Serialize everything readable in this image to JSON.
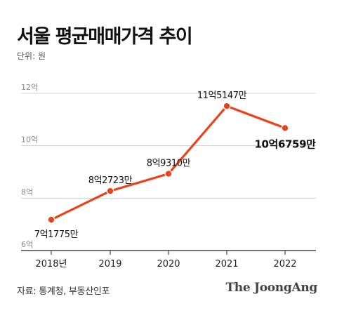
{
  "header": {
    "title": "서울 평균매매가격 추이",
    "unit": "단위: 원"
  },
  "footer": {
    "source": "자료: 통계청, 부동산인포",
    "logo": "The JoongAng"
  },
  "colors": {
    "line": "#e8431c",
    "grid": "#c8c8c8",
    "axis": "#222222",
    "label": "#111111",
    "tick": "#888888"
  },
  "chart_data": {
    "type": "line",
    "title": "서울 평균매매가격 추이",
    "ylabel": "",
    "xlabel": "",
    "unit": "단위: 원",
    "categories": [
      "2018년",
      "2019",
      "2020",
      "2021",
      "2022"
    ],
    "values": [
      7.1775,
      8.2723,
      8.931,
      11.5147,
      10.6759
    ],
    "data_labels": [
      "7억1775만",
      "8억2723만",
      "8억9310만",
      "11억5147만",
      "10억6759만"
    ],
    "highlight_index": 4,
    "ylim": [
      6,
      12
    ],
    "yticks": [
      6,
      8,
      10,
      12
    ],
    "ytick_labels": [
      "6억",
      "8억",
      "10억",
      "12억"
    ],
    "grid": true
  }
}
